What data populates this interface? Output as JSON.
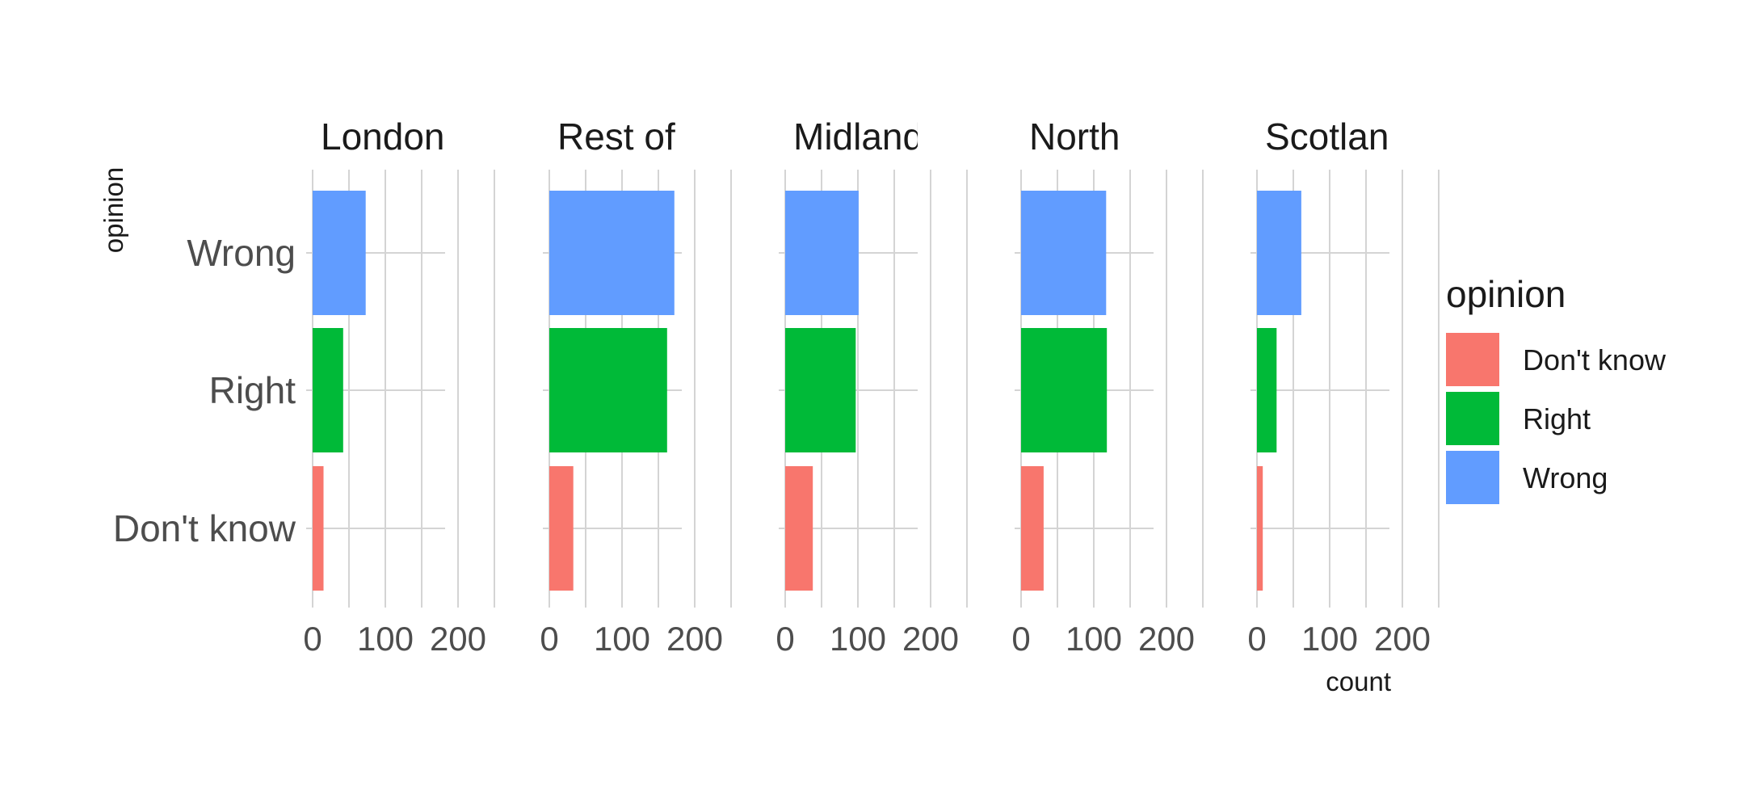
{
  "chart_data": {
    "type": "bar",
    "orientation": "horizontal",
    "facet_by": "region",
    "panels": [
      "London",
      "Rest of South",
      "Midlands",
      "North",
      "Scotland"
    ],
    "panel_display_labels": [
      "London",
      "Rest of S",
      "Midlands",
      "North",
      "Scotland"
    ],
    "categories": [
      "Don't know",
      "Right",
      "Wrong"
    ],
    "series": [
      {
        "panel": "London",
        "values": [
          15,
          42,
          73
        ]
      },
      {
        "panel": "Rest of South",
        "values": [
          33,
          162,
          172
        ]
      },
      {
        "panel": "Midlands",
        "values": [
          38,
          97,
          101
        ]
      },
      {
        "panel": "North",
        "values": [
          31,
          118,
          117
        ]
      },
      {
        "panel": "Scotland",
        "values": [
          8,
          27,
          61
        ]
      }
    ],
    "colors": {
      "Don't know": "#F8766D",
      "Right": "#00BA38",
      "Wrong": "#619CFF"
    },
    "ylabel": "opinion",
    "xlabel": "count",
    "xlim": [
      0,
      260
    ],
    "x_ticks": [
      0,
      100,
      200
    ],
    "x_tick_labels": [
      "0",
      "100",
      "200"
    ],
    "grid": true,
    "legend": {
      "title": "opinion",
      "position": "right",
      "items": [
        "Don't know",
        "Right",
        "Wrong"
      ]
    }
  }
}
